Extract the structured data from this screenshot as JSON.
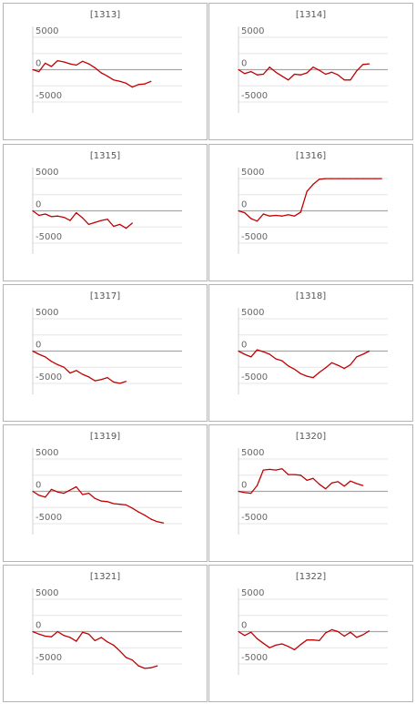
{
  "colors": {
    "line": "#c00000",
    "zero": "#a6a6a6",
    "grid": "#e6e6e6",
    "axis": "#d0d0d0",
    "border": "#b4b4b4"
  },
  "chart_data": [
    {
      "type": "line",
      "title": "[1313]",
      "ylim": [
        -6700,
        6700
      ],
      "yticks": [
        {
          "v": 5000,
          "l": "5000"
        },
        {
          "v": 0,
          "l": "0"
        },
        {
          "v": -5000,
          "l": "-5000"
        }
      ],
      "values": [
        0,
        -300,
        1000,
        500,
        1400,
        1200,
        900,
        700,
        1300,
        900,
        300,
        -500,
        -1000,
        -1600,
        -1800,
        -2100,
        -2700,
        -2300,
        -2200,
        -1800
      ]
    },
    {
      "type": "line",
      "title": "[1314]",
      "ylim": [
        -6700,
        6700
      ],
      "yticks": [
        {
          "v": 5000,
          "l": "5000"
        },
        {
          "v": 0,
          "l": "0"
        },
        {
          "v": -5000,
          "l": "-5000"
        }
      ],
      "values": [
        0,
        -600,
        -300,
        -800,
        -700,
        400,
        -400,
        -1000,
        -1600,
        -700,
        -800,
        -500,
        400,
        -100,
        -700,
        -400,
        -800,
        -1600,
        -1600,
        -200,
        800,
        900
      ]
    },
    {
      "type": "line",
      "title": "[1315]",
      "ylim": [
        -6700,
        6700
      ],
      "yticks": [
        {
          "v": 5000,
          "l": "5000"
        },
        {
          "v": 0,
          "l": "0"
        },
        {
          "v": -5000,
          "l": "-5000"
        }
      ],
      "values": [
        0,
        -700,
        -500,
        -900,
        -800,
        -1000,
        -1500,
        -300,
        -1100,
        -2100,
        -1800,
        -1500,
        -1300,
        -2400,
        -2100,
        -2700,
        -1900
      ]
    },
    {
      "type": "line",
      "title": "[1316]",
      "ylim": [
        -6700,
        6700
      ],
      "yticks": [
        {
          "v": 5000,
          "l": "5000"
        },
        {
          "v": 0,
          "l": "0"
        },
        {
          "v": -5000,
          "l": "-5000"
        }
      ],
      "values": [
        0,
        -300,
        -1200,
        -1600,
        -500,
        -800,
        -700,
        -800,
        -600,
        -800,
        -200,
        3000,
        4100,
        4900,
        5000,
        5000,
        5000,
        5000,
        5000,
        5000,
        5000,
        5000,
        5000,
        5000
      ]
    },
    {
      "type": "line",
      "title": "[1317]",
      "ylim": [
        -6700,
        6700
      ],
      "yticks": [
        {
          "v": 5000,
          "l": "5000"
        },
        {
          "v": 0,
          "l": "0"
        },
        {
          "v": -5000,
          "l": "-5000"
        }
      ],
      "values": [
        0,
        -500,
        -900,
        -1600,
        -2100,
        -2500,
        -3400,
        -3000,
        -3600,
        -4000,
        -4600,
        -4400,
        -4100,
        -4800,
        -5000,
        -4700
      ]
    },
    {
      "type": "line",
      "title": "[1318]",
      "ylim": [
        -6700,
        6700
      ],
      "yticks": [
        {
          "v": 5000,
          "l": "5000"
        },
        {
          "v": 0,
          "l": "0"
        },
        {
          "v": -5000,
          "l": "-5000"
        }
      ],
      "values": [
        0,
        -500,
        -900,
        200,
        -100,
        -500,
        -1200,
        -1500,
        -2300,
        -2800,
        -3500,
        -3900,
        -4100,
        -3300,
        -2600,
        -1800,
        -2200,
        -2700,
        -2100,
        -900,
        -500,
        0
      ]
    },
    {
      "type": "line",
      "title": "[1319]",
      "ylim": [
        -6700,
        6700
      ],
      "yticks": [
        {
          "v": 5000,
          "l": "5000"
        },
        {
          "v": 0,
          "l": "0"
        },
        {
          "v": -5000,
          "l": "-5000"
        }
      ],
      "values": [
        0,
        -600,
        -900,
        300,
        -100,
        -300,
        200,
        700,
        -500,
        -300,
        -1100,
        -1500,
        -1600,
        -1900,
        -2000,
        -2100,
        -2600,
        -3200,
        -3700,
        -4300,
        -4700,
        -4900
      ]
    },
    {
      "type": "line",
      "title": "[1320]",
      "ylim": [
        -6700,
        6700
      ],
      "yticks": [
        {
          "v": 5000,
          "l": "5000"
        },
        {
          "v": 0,
          "l": "0"
        },
        {
          "v": -5000,
          "l": "-5000"
        }
      ],
      "values": [
        0,
        -200,
        -300,
        900,
        3300,
        3400,
        3300,
        3500,
        2600,
        2600,
        2500,
        1700,
        2000,
        1100,
        400,
        1300,
        1500,
        800,
        1600,
        1200,
        900
      ]
    },
    {
      "type": "line",
      "title": "[1321]",
      "ylim": [
        -6700,
        6700
      ],
      "yticks": [
        {
          "v": 5000,
          "l": "5000"
        },
        {
          "v": 0,
          "l": "0"
        },
        {
          "v": -5000,
          "l": "-5000"
        }
      ],
      "values": [
        0,
        -400,
        -700,
        -800,
        0,
        -600,
        -900,
        -1500,
        -100,
        -400,
        -1400,
        -900,
        -1600,
        -2100,
        -3000,
        -4000,
        -4400,
        -5300,
        -5700,
        -5600,
        -5300
      ]
    },
    {
      "type": "line",
      "title": "[1322]",
      "ylim": [
        -6700,
        6700
      ],
      "yticks": [
        {
          "v": 5000,
          "l": "5000"
        },
        {
          "v": 0,
          "l": "0"
        },
        {
          "v": -5000,
          "l": "-5000"
        }
      ],
      "values": [
        0,
        -600,
        -100,
        -1100,
        -1800,
        -2500,
        -2100,
        -1900,
        -2300,
        -2800,
        -2000,
        -1300,
        -1300,
        -1400,
        -200,
        300,
        0,
        -700,
        -100,
        -900,
        -500,
        100
      ]
    }
  ]
}
